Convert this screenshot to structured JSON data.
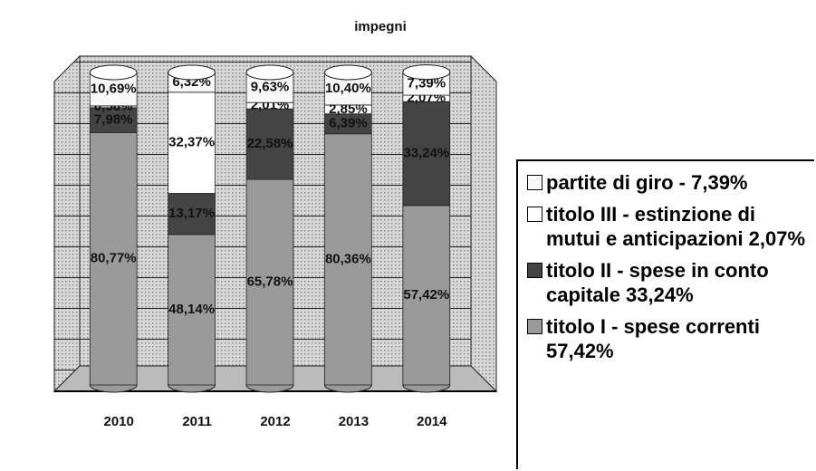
{
  "chart_data": {
    "type": "bar",
    "stacked": true,
    "title": "impegni",
    "categories": [
      "2010",
      "2011",
      "2012",
      "2013",
      "2014"
    ],
    "ylim": [
      0,
      100
    ],
    "series": [
      {
        "name": "titolo I  - spese correnti 57,42%",
        "color": "#9a9a9a",
        "values": [
          80.77,
          48.14,
          65.78,
          80.36,
          57.42
        ],
        "value_labels": [
          "80,77%",
          "48,14%",
          "65,78%",
          "80,36%",
          "57,42%"
        ]
      },
      {
        "name": "titolo II - spese in conto capitale 33,24%",
        "color": "#444444",
        "values": [
          7.98,
          13.17,
          22.58,
          6.39,
          33.24
        ],
        "value_labels": [
          "7,98%",
          "13,17%",
          "22,58%",
          "6,39%",
          "33,24%"
        ]
      },
      {
        "name": "titolo III - estinzione di mutui e anticipazioni 2,07%",
        "color": "#ffffff",
        "values": [
          0.56,
          32.37,
          2.01,
          2.85,
          2.07
        ],
        "value_labels": [
          "0,56%",
          "32,37%",
          "2,01%",
          "2,85%",
          "2,07%"
        ]
      },
      {
        "name": "partite di giro - 7,39%",
        "color": "#f8f8f8",
        "values": [
          10.69,
          6.32,
          9.63,
          10.4,
          7.39
        ],
        "value_labels": [
          "10,69%",
          "6,32%",
          "9,63%",
          "10,40%",
          "7,39%"
        ]
      }
    ]
  }
}
